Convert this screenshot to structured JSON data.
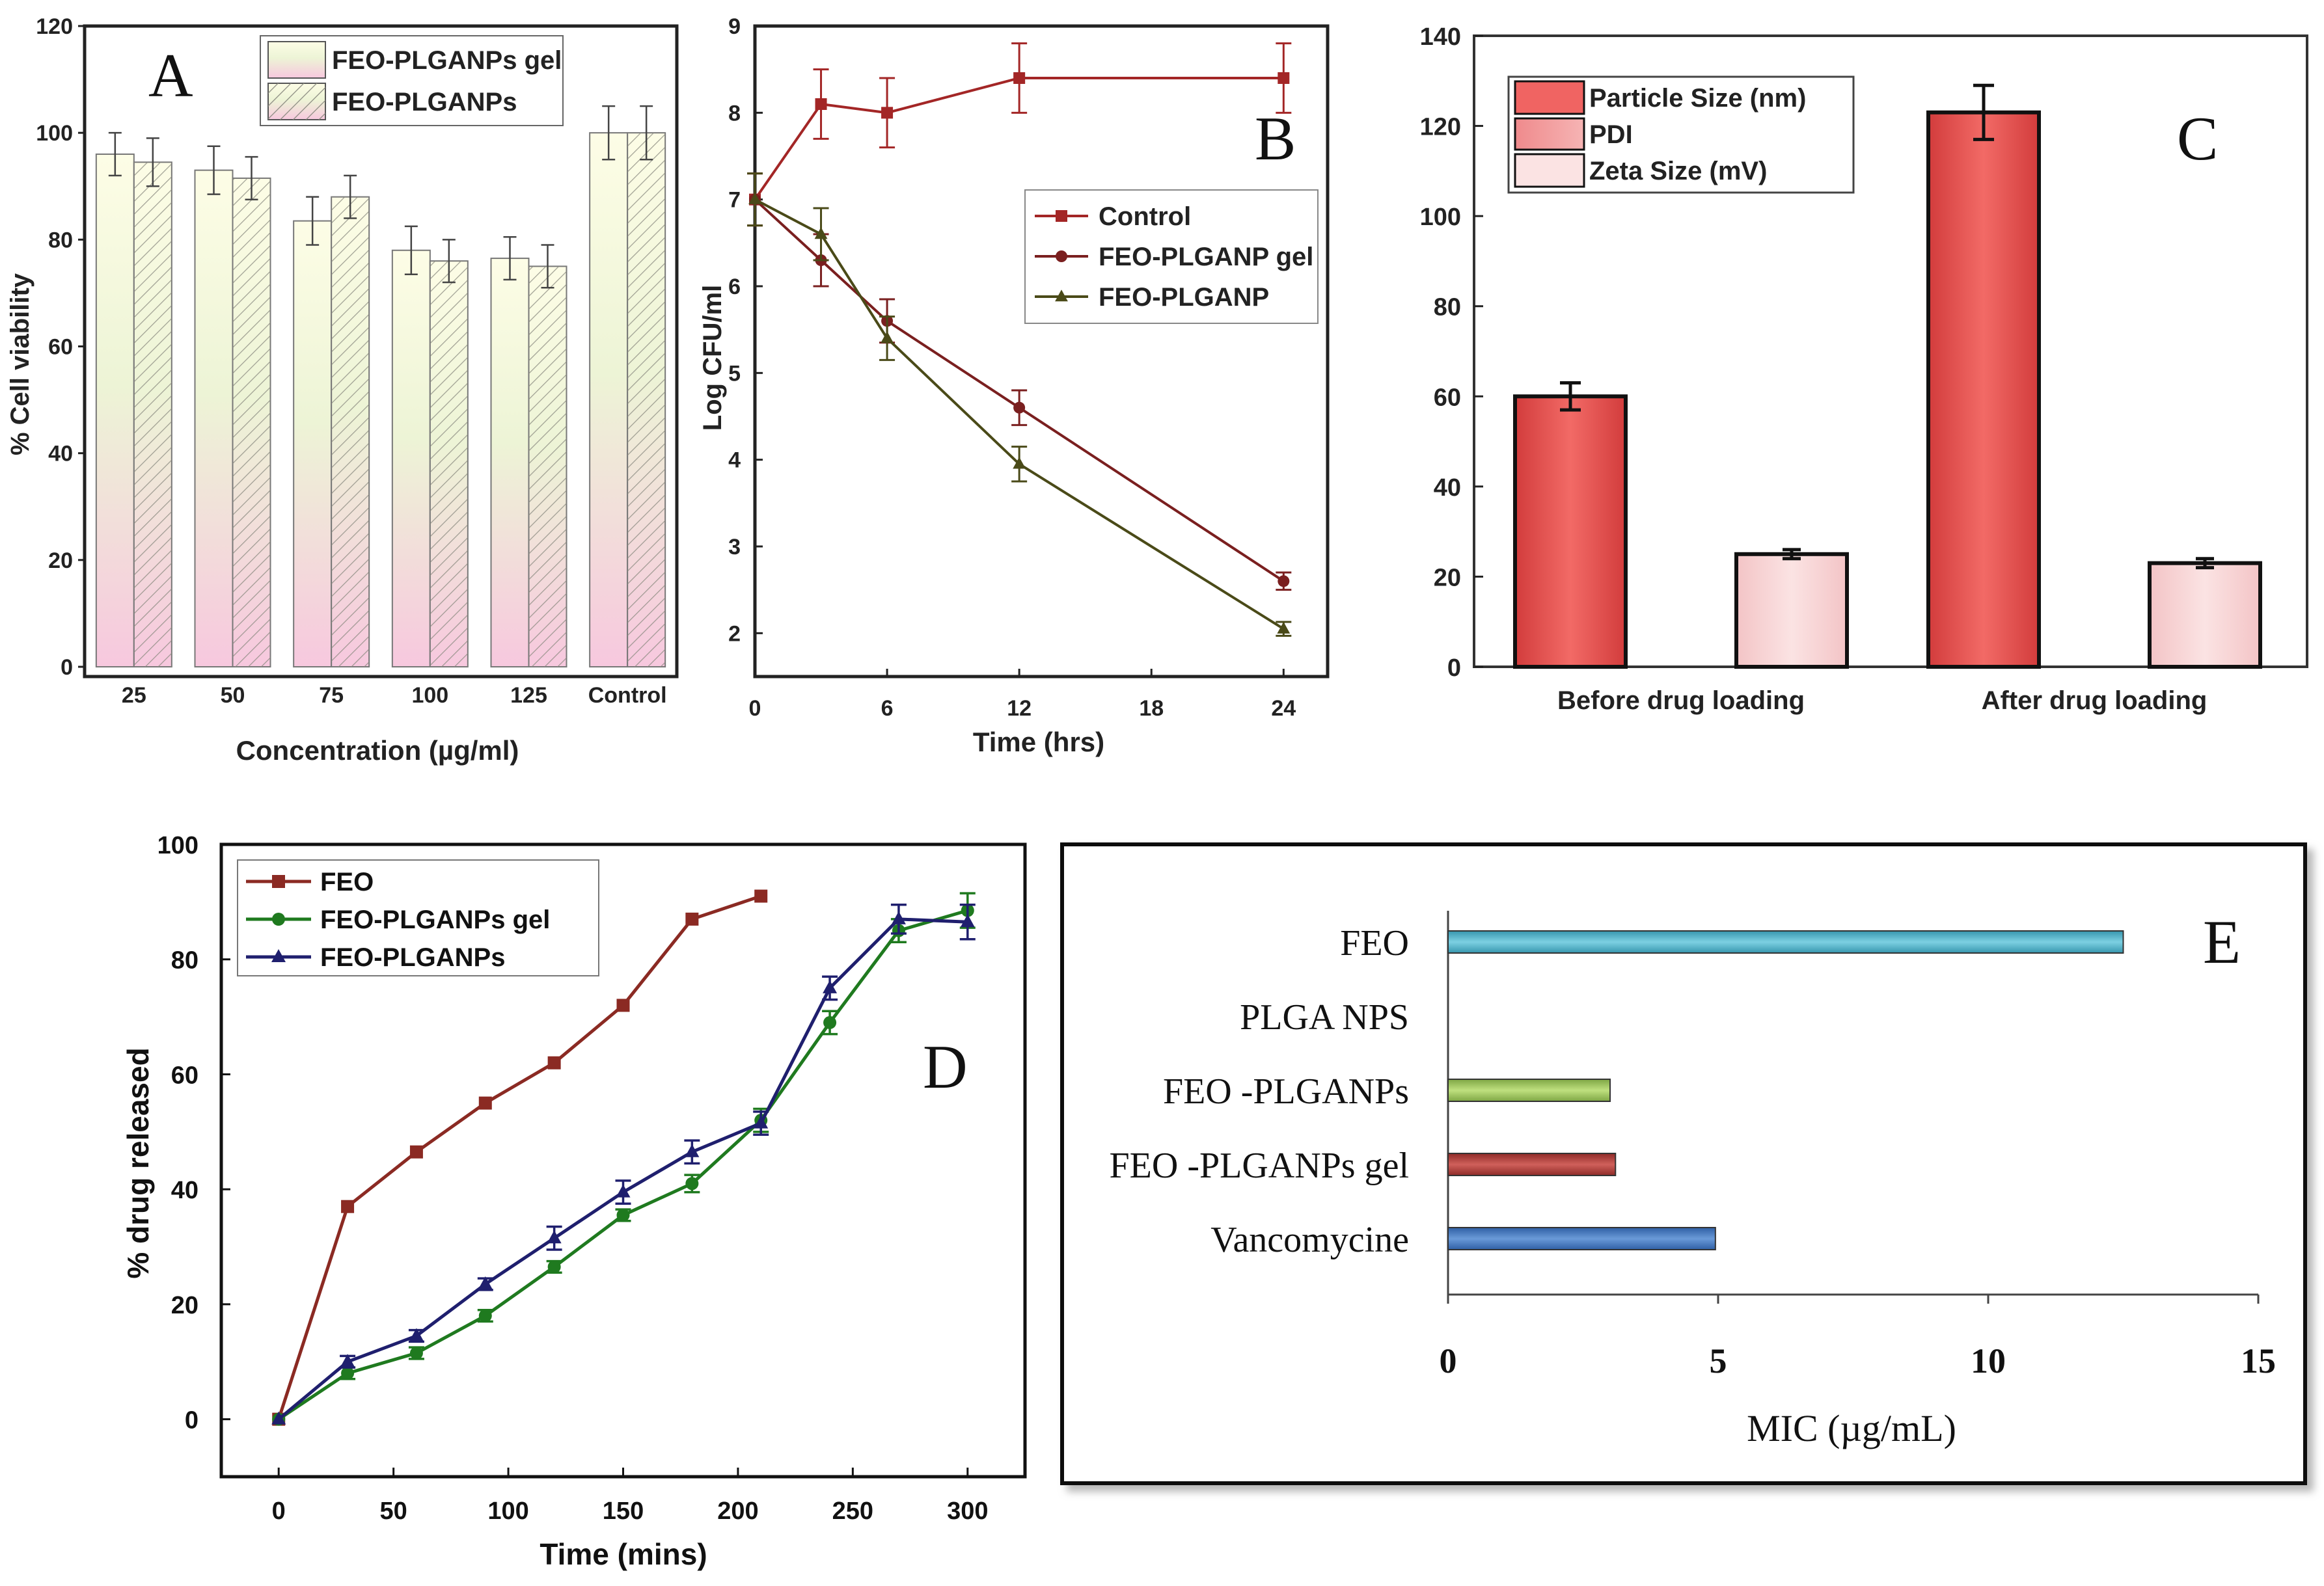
{
  "chart_data": [
    {
      "id": "A",
      "panel_label": "A",
      "type": "bar",
      "xlabel": "Concentration (µg/ml)",
      "ylabel": "% Cell viability",
      "ylim": [
        0,
        120
      ],
      "yticks": [
        0,
        20,
        40,
        60,
        80,
        100,
        120
      ],
      "categories": [
        "25",
        "50",
        "75",
        "100",
        "125",
        "Control"
      ],
      "series": [
        {
          "name": "FEO-PLGANPs gel",
          "values": [
            96,
            93,
            83.5,
            78,
            76.5,
            100
          ],
          "errors": [
            4,
            4.5,
            4.5,
            4.5,
            4,
            5
          ]
        },
        {
          "name": "FEO-PLGANPs",
          "values": [
            94.5,
            91.5,
            88,
            76,
            75,
            100
          ],
          "errors": [
            4.5,
            4,
            4,
            4,
            4,
            5
          ]
        }
      ],
      "legend": "top-center",
      "grid": false
    },
    {
      "id": "B",
      "panel_label": "B",
      "type": "line",
      "xlabel": "Time (hrs)",
      "ylabel": "Log CFU/ml",
      "xlim": [
        0,
        26
      ],
      "ylim": [
        1.5,
        9
      ],
      "xticks": [
        0,
        6,
        12,
        18,
        24
      ],
      "yticks": [
        2,
        3,
        4,
        5,
        6,
        7,
        8,
        9
      ],
      "series": [
        {
          "name": "Control",
          "x": [
            0,
            3,
            6,
            12,
            24
          ],
          "y": [
            7,
            8.1,
            8,
            8.4,
            8.4
          ],
          "errors": [
            0.3,
            0.4,
            0.4,
            0.4,
            0.4
          ],
          "marker": "square",
          "color": "#a32626"
        },
        {
          "name": "FEO-PLGANP gel",
          "x": [
            0,
            3,
            6,
            12,
            24
          ],
          "y": [
            7,
            6.3,
            5.6,
            4.6,
            2.6
          ],
          "errors": [
            0.3,
            0.3,
            0.25,
            0.2,
            0.1
          ],
          "marker": "circle",
          "color": "#7a1f1f"
        },
        {
          "name": "FEO-PLGANP",
          "x": [
            0,
            3,
            6,
            12,
            24
          ],
          "y": [
            7,
            6.6,
            5.4,
            3.95,
            2.05
          ],
          "errors": [
            0.3,
            0.3,
            0.25,
            0.2,
            0.08
          ],
          "marker": "triangle",
          "color": "#4a4a18"
        }
      ],
      "legend": "right",
      "grid": false
    },
    {
      "id": "C",
      "panel_label": "C",
      "type": "bar",
      "xlabel": "",
      "ylabel": "",
      "ylim": [
        0,
        140
      ],
      "yticks": [
        0,
        20,
        40,
        60,
        80,
        100,
        120,
        140
      ],
      "categories": [
        "Before drug loading",
        "After drug loading"
      ],
      "series": [
        {
          "name": "Particle Size (nm)",
          "values": [
            60,
            123
          ],
          "errors": [
            3,
            6
          ]
        },
        {
          "name": "PDI",
          "values": [
            null,
            null
          ]
        },
        {
          "name": "Zeta Size (mV)",
          "values": [
            25,
            23
          ],
          "errors": [
            1,
            1
          ]
        }
      ],
      "legend": "top-left",
      "grid": false
    },
    {
      "id": "D",
      "panel_label": "D",
      "type": "line",
      "xlabel": "Time (mins)",
      "ylabel": "% drug released",
      "xlim": [
        -25,
        325
      ],
      "ylim": [
        -10,
        100
      ],
      "xticks": [
        0,
        50,
        100,
        150,
        200,
        250,
        300
      ],
      "yticks": [
        0,
        20,
        40,
        60,
        80,
        100
      ],
      "series": [
        {
          "name": "FEO",
          "x": [
            0,
            30,
            60,
            90,
            120,
            150,
            180,
            210
          ],
          "y": [
            0,
            37,
            46.5,
            55,
            62,
            72,
            87,
            91
          ],
          "marker": "square",
          "color": "#8b2a23"
        },
        {
          "name": "FEO-PLGANPs gel",
          "x": [
            0,
            30,
            60,
            90,
            120,
            150,
            180,
            210,
            240,
            270,
            300
          ],
          "y": [
            0,
            8,
            11.5,
            18,
            26.5,
            35.5,
            41,
            52,
            69,
            85,
            88.5
          ],
          "errors": [
            0,
            1,
            1,
            1,
            1,
            1,
            1.5,
            2,
            2,
            2,
            3
          ],
          "marker": "circle",
          "color": "#1f7a1f"
        },
        {
          "name": "FEO-PLGANPs",
          "x": [
            0,
            30,
            60,
            90,
            120,
            150,
            180,
            210,
            240,
            270,
            300
          ],
          "y": [
            0,
            10,
            14.5,
            23.5,
            31.5,
            39.5,
            46.5,
            51.5,
            75,
            87,
            86.5
          ],
          "errors": [
            0,
            1,
            1,
            1,
            2,
            2,
            2,
            2,
            2,
            2.5,
            3
          ],
          "marker": "triangle",
          "color": "#1f1f6e"
        }
      ],
      "legend": "top-left",
      "grid": false
    },
    {
      "id": "E",
      "panel_label": "E",
      "type": "bar",
      "orientation": "horizontal",
      "xlabel": "MIC (µg/mL)",
      "ylabel": "",
      "xlim": [
        0,
        15
      ],
      "xticks": [
        0,
        5,
        10,
        15
      ],
      "categories": [
        "FEO",
        "PLGA NPS",
        "FEO -PLGANPs",
        "FEO -PLGANPs gel",
        "Vancomycine"
      ],
      "values": [
        12.5,
        0,
        3,
        3.1,
        4.95
      ],
      "colors": [
        "#4fb3c8",
        null,
        "#9bc25a",
        "#b0403c",
        "#3f72b8"
      ],
      "grid": false
    }
  ]
}
